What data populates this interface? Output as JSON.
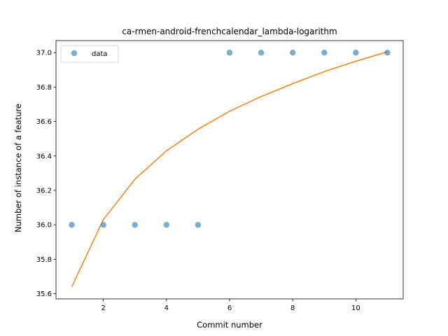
{
  "chart_data": {
    "type": "scatter",
    "title": "ca-rmen-android-frenchcalendar_lambda-logarithm",
    "xlabel": "Commit number",
    "ylabel": "Number of instance of a feature",
    "xlim": [
      0.5,
      11.5
    ],
    "ylim": [
      35.57,
      37.07
    ],
    "xticks": [
      2,
      4,
      6,
      8,
      10
    ],
    "yticks": [
      35.6,
      35.8,
      36.0,
      36.2,
      36.4,
      36.6,
      36.8,
      37.0
    ],
    "ytick_labels": [
      "35.6",
      "35.8",
      "36.0",
      "36.2",
      "36.4",
      "36.6",
      "36.8",
      "37.0"
    ],
    "grid": false,
    "legend": {
      "position": "top-left"
    },
    "series": [
      {
        "name": "data",
        "kind": "scatter",
        "color": "#1f77b4",
        "x": [
          1,
          2,
          3,
          4,
          5,
          6,
          7,
          8,
          9,
          10,
          11
        ],
        "y": [
          36,
          36,
          36,
          36,
          36,
          37,
          37,
          37,
          37,
          37,
          37
        ]
      },
      {
        "kind": "line",
        "color": "#ff7f0e",
        "x": [
          1,
          2,
          3,
          4,
          5,
          6,
          7,
          8,
          9,
          10,
          11
        ],
        "y": [
          35.64,
          36.03,
          36.265,
          36.43,
          36.555,
          36.66,
          36.745,
          36.82,
          36.89,
          36.95,
          37.005
        ]
      }
    ]
  }
}
